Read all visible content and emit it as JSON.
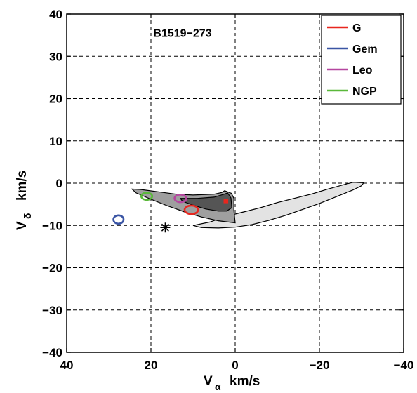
{
  "chart_data": {
    "type": "contour",
    "title": "",
    "xlabel": {
      "main": "V",
      "sub": "α",
      "unit": "km/s"
    },
    "ylabel": {
      "main": "V",
      "sub": "δ",
      "unit": "km/s"
    },
    "xlim": [
      40,
      -40
    ],
    "ylim": [
      -40,
      40
    ],
    "x_reversed": true,
    "xticks": [
      40,
      20,
      0,
      -20,
      -40
    ],
    "yticks": [
      -40,
      -30,
      -20,
      -10,
      0,
      10,
      20,
      30,
      40
    ],
    "xtick_labels": [
      "40",
      "20",
      "0",
      "−20",
      "−40"
    ],
    "ytick_labels": [
      "−40",
      "−30",
      "−20",
      "−10",
      "0",
      "10",
      "20",
      "30",
      "40"
    ],
    "grid": true,
    "legend_position": "top-right",
    "annotation": {
      "text": "B1519−273",
      "x": 12.5,
      "y": 35.6
    },
    "contours": [
      {
        "level": "outer",
        "fill": "#e3e3e3",
        "points": [
          [
            10,
            -10
          ],
          [
            6,
            -9.2
          ],
          [
            2,
            -7.8
          ],
          [
            -2,
            -6.8
          ],
          [
            -6,
            -5.8
          ],
          [
            -10,
            -4.6
          ],
          [
            -14,
            -3.6
          ],
          [
            -18,
            -2.6
          ],
          [
            -22,
            -1.4
          ],
          [
            -26,
            -0.3
          ],
          [
            -28,
            0.2
          ],
          [
            -30.5,
            0.1
          ],
          [
            -30,
            -0.6
          ],
          [
            -28,
            -1.6
          ],
          [
            -24,
            -3.2
          ],
          [
            -20,
            -4.8
          ],
          [
            -16,
            -6.2
          ],
          [
            -12,
            -7.6
          ],
          [
            -8,
            -8.8
          ],
          [
            -4,
            -9.8
          ],
          [
            0,
            -10.4
          ],
          [
            4,
            -10.6
          ],
          [
            8,
            -10.5
          ]
        ]
      },
      {
        "level": "middle",
        "fill": "#9f9f9f",
        "points": [
          [
            0,
            -9.4
          ],
          [
            0.3,
            -6.5
          ],
          [
            0.3,
            -3.6
          ],
          [
            0.9,
            -2.4
          ],
          [
            2.5,
            -1.8
          ],
          [
            3.2,
            -2.2
          ],
          [
            5,
            -2.6
          ],
          [
            10,
            -2.8
          ],
          [
            14,
            -2.6
          ],
          [
            17,
            -2.2
          ],
          [
            22.5,
            -1.5
          ],
          [
            24.5,
            -1.4
          ],
          [
            23.5,
            -2.3
          ],
          [
            20,
            -3.8
          ],
          [
            16,
            -5.4
          ],
          [
            12,
            -6.8
          ],
          [
            8,
            -8
          ],
          [
            4,
            -8.9
          ]
        ]
      },
      {
        "level": "inner",
        "fill": "#555555",
        "points": [
          [
            0.8,
            -5.8
          ],
          [
            1,
            -3.5
          ],
          [
            1.8,
            -2.3
          ],
          [
            2.6,
            -2.6
          ],
          [
            5,
            -3.3
          ],
          [
            9,
            -3.6
          ],
          [
            13,
            -3.6
          ],
          [
            12.5,
            -4.3
          ],
          [
            10,
            -5.2
          ],
          [
            7,
            -6.1
          ],
          [
            4,
            -6.6
          ],
          [
            2,
            -6.6
          ]
        ]
      }
    ],
    "markers": [
      {
        "series": "G",
        "shape": "ellipse",
        "x": 10.4,
        "y": -6.3,
        "rx_data": 1.6,
        "ry_data": 1.0,
        "color": "#e8261e"
      },
      {
        "series": "Leo",
        "shape": "ellipse",
        "x": 13.0,
        "y": -3.6,
        "rx_data": 1.4,
        "ry_data": 0.9,
        "color": "#b5469f"
      },
      {
        "series": "NGP",
        "shape": "ellipse",
        "x": 21.0,
        "y": -3.1,
        "rx_data": 1.3,
        "ry_data": 0.85,
        "color": "#5ab83a"
      },
      {
        "series": "Gem",
        "shape": "ellipse",
        "x": 27.7,
        "y": -8.6,
        "rx_data": 1.2,
        "ry_data": 1.0,
        "color": "#3a55a4"
      },
      {
        "series": "",
        "shape": "square",
        "x": 2.2,
        "y": -4.2,
        "size_data": 1.1,
        "color": "#e8261e"
      },
      {
        "series": "",
        "shape": "asterisk",
        "x": 16.6,
        "y": -10.5,
        "color": "#000000"
      }
    ],
    "legend": [
      {
        "label": "G",
        "color": "#e8261e"
      },
      {
        "label": "Gem",
        "color": "#3a55a4"
      },
      {
        "label": "Leo",
        "color": "#b5469f"
      },
      {
        "label": "NGP",
        "color": "#5ab83a"
      }
    ]
  }
}
